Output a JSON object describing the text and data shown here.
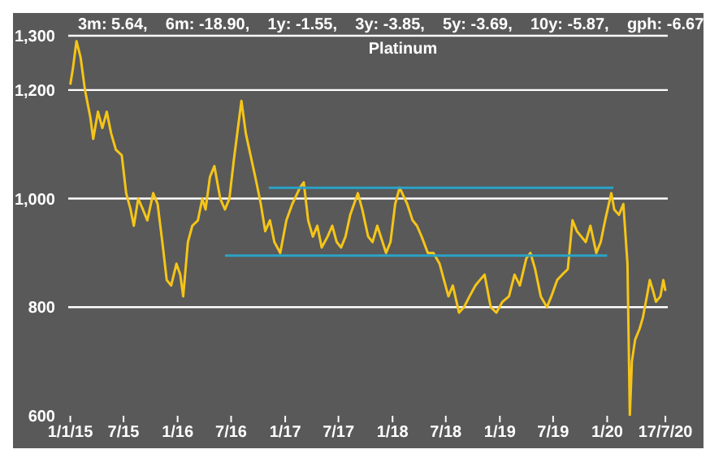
{
  "chart_data": {
    "type": "line",
    "title": "Platinum",
    "subtitle": "3m: 5.64,    6m: -18.90,    1y: -1.55,    3y: -3.85,    5y: -3.69,    10y: -5.87,    gph: -6.67",
    "xlim": [
      "2014-12-25",
      "2020-07-25"
    ],
    "xticks": [
      {
        "value": "2015-01-01",
        "label": "1/1/15"
      },
      {
        "value": "2015-07-01",
        "label": "7/15"
      },
      {
        "value": "2016-01-01",
        "label": "1/16"
      },
      {
        "value": "2016-07-01",
        "label": "7/16"
      },
      {
        "value": "2017-01-01",
        "label": "1/17"
      },
      {
        "value": "2017-07-01",
        "label": "7/17"
      },
      {
        "value": "2018-01-01",
        "label": "1/18"
      },
      {
        "value": "2018-07-01",
        "label": "7/18"
      },
      {
        "value": "2019-01-01",
        "label": "1/19"
      },
      {
        "value": "2019-07-01",
        "label": "7/19"
      },
      {
        "value": "2020-01-01",
        "label": "1/20"
      },
      {
        "value": "2020-07-17",
        "label": "17/7/20"
      }
    ],
    "ylim": [
      600,
      1300
    ],
    "yticks": [
      600,
      800,
      {
        "value": 1000,
        "label": "1,000"
      },
      {
        "value": 1200,
        "label": "1,200"
      },
      {
        "value": 1300,
        "label": "1,300"
      }
    ],
    "grid": "y",
    "marker": "none",
    "line_style": "solid",
    "series": [
      {
        "color": "#f5c518",
        "x": [
          "2015-01-01",
          "2015-01-10",
          "2015-01-22",
          "2015-02-05",
          "2015-02-20",
          "2015-03-10",
          "2015-03-20",
          "2015-04-05",
          "2015-04-20",
          "2015-05-05",
          "2015-05-20",
          "2015-06-05",
          "2015-06-25",
          "2015-07-10",
          "2015-07-25",
          "2015-08-05",
          "2015-08-20",
          "2015-09-05",
          "2015-09-20",
          "2015-10-10",
          "2015-10-25",
          "2015-11-10",
          "2015-11-25",
          "2015-12-10",
          "2015-12-28",
          "2016-01-10",
          "2016-01-20",
          "2016-02-05",
          "2016-02-20",
          "2016-03-10",
          "2016-03-25",
          "2016-04-05",
          "2016-04-20",
          "2016-05-05",
          "2016-05-25",
          "2016-06-10",
          "2016-06-25",
          "2016-07-10",
          "2016-08-05",
          "2016-08-20",
          "2016-09-05",
          "2016-09-25",
          "2016-10-10",
          "2016-10-25",
          "2016-11-10",
          "2016-11-25",
          "2016-12-15",
          "2017-01-05",
          "2017-01-25",
          "2017-02-20",
          "2017-03-05",
          "2017-03-20",
          "2017-04-05",
          "2017-04-20",
          "2017-05-05",
          "2017-05-25",
          "2017-06-10",
          "2017-06-25",
          "2017-07-10",
          "2017-07-25",
          "2017-08-10",
          "2017-09-05",
          "2017-09-20",
          "2017-10-10",
          "2017-10-25",
          "2017-11-10",
          "2017-12-10",
          "2017-12-25",
          "2018-01-10",
          "2018-01-25",
          "2018-02-20",
          "2018-03-10",
          "2018-03-25",
          "2018-04-10",
          "2018-05-01",
          "2018-05-20",
          "2018-06-10",
          "2018-06-25",
          "2018-07-10",
          "2018-07-25",
          "2018-08-15",
          "2018-09-01",
          "2018-09-20",
          "2018-10-10",
          "2018-10-25",
          "2018-11-10",
          "2018-12-01",
          "2018-12-20",
          "2019-01-10",
          "2019-02-01",
          "2019-02-20",
          "2019-03-10",
          "2019-04-01",
          "2019-04-15",
          "2019-05-01",
          "2019-05-20",
          "2019-06-10",
          "2019-06-25",
          "2019-07-15",
          "2019-08-01",
          "2019-08-20",
          "2019-09-05",
          "2019-09-20",
          "2019-10-05",
          "2019-10-20",
          "2019-11-05",
          "2019-11-25",
          "2019-12-10",
          "2019-12-25",
          "2020-01-15",
          "2020-01-25",
          "2020-02-10",
          "2020-02-25",
          "2020-03-10",
          "2020-03-18",
          "2020-03-25",
          "2020-04-05",
          "2020-04-20",
          "2020-05-01",
          "2020-05-15",
          "2020-05-25",
          "2020-06-05",
          "2020-06-15",
          "2020-06-30",
          "2020-07-10",
          "2020-07-17"
        ],
        "values": [
          1210,
          1240,
          1290,
          1260,
          1200,
          1150,
          1110,
          1160,
          1130,
          1160,
          1120,
          1090,
          1080,
          1010,
          980,
          950,
          1000,
          980,
          960,
          1010,
          990,
          920,
          850,
          840,
          880,
          860,
          820,
          920,
          950,
          960,
          1000,
          980,
          1040,
          1060,
          1000,
          980,
          1000,
          1070,
          1180,
          1120,
          1080,
          1030,
          990,
          940,
          960,
          920,
          900,
          960,
          990,
          1020,
          1030,
          960,
          930,
          950,
          910,
          930,
          950,
          920,
          910,
          930,
          970,
          1010,
          980,
          930,
          920,
          950,
          900,
          920,
          990,
          1020,
          990,
          960,
          950,
          930,
          900,
          900,
          880,
          850,
          820,
          840,
          790,
          800,
          820,
          840,
          850,
          860,
          800,
          790,
          810,
          820,
          860,
          840,
          890,
          900,
          870,
          820,
          800,
          820,
          850,
          860,
          870,
          960,
          940,
          930,
          920,
          950,
          900,
          920,
          960,
          1010,
          980,
          970,
          990,
          880,
          600,
          700,
          740,
          760,
          780,
          820,
          850,
          830,
          810,
          820,
          850,
          830
        ]
      },
      {
        "color": "#2ba3c6",
        "x": [
          "2016-11-06",
          "2020-01-22"
        ],
        "values": [
          1020,
          1020
        ]
      },
      {
        "color": "#2ba3c6",
        "x": [
          "2016-06-10",
          "2020-01-01"
        ],
        "values": [
          895,
          895
        ]
      }
    ]
  }
}
